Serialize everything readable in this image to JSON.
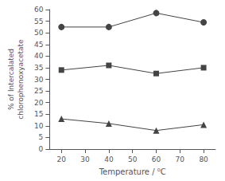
{
  "chart_data": {
    "type": "line",
    "x": [
      20,
      40,
      60,
      80
    ],
    "series": [
      {
        "color": "#444444",
        "marker": "circle",
        "values": [
          52.5,
          52.5,
          58.5,
          54.5
        ]
      },
      {
        "color": "#444444",
        "marker": "square",
        "values": [
          34.0,
          36.0,
          32.5,
          35.0
        ]
      },
      {
        "color": "#444444",
        "marker": "triangle",
        "values": [
          13.0,
          11.0,
          8.0,
          10.5
        ]
      }
    ],
    "xlabel": "Temperature / ⁰C",
    "ylabel": "% of Intercalated\nchlorophenoxyacetate",
    "xlim": [
      15,
      85
    ],
    "ylim": [
      0,
      60
    ],
    "xticks": [
      20,
      30,
      40,
      50,
      60,
      70,
      80
    ],
    "yticks": [
      0,
      5,
      10,
      15,
      20,
      25,
      30,
      35,
      40,
      45,
      50,
      55,
      60
    ],
    "grid": false
  }
}
